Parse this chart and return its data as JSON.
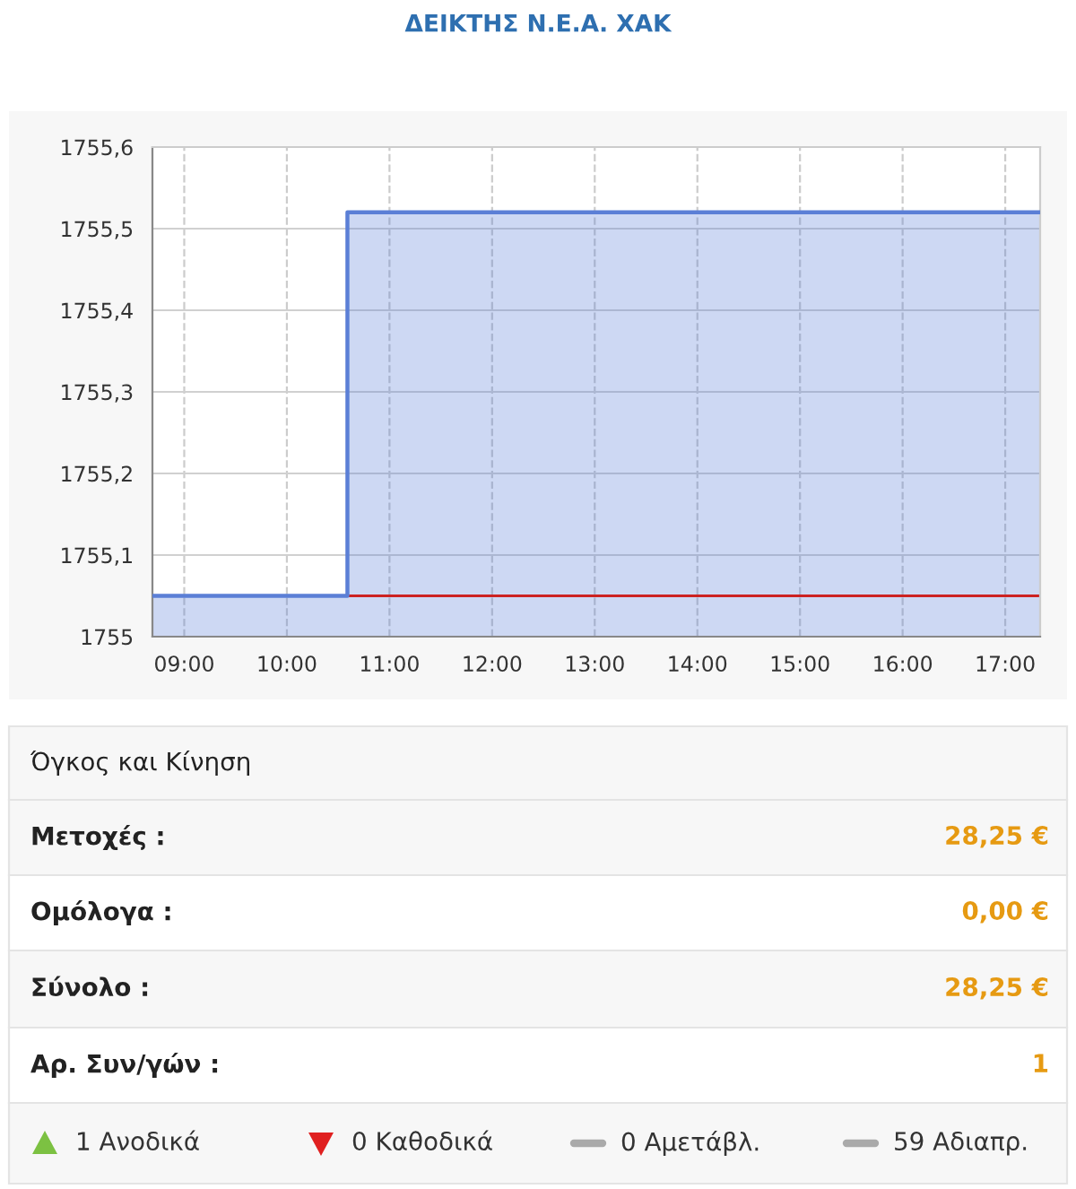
{
  "chart_data": {
    "type": "area",
    "title": "ΔΕΙΚΤΗΣ Ν.Ε.Α. ΧΑΚ",
    "series": [
      {
        "color": "#5b7fd6",
        "x": [
          8.69,
          10.59,
          10.59,
          17.34
        ],
        "values": [
          1755.05,
          1755.05,
          1755.52,
          1755.52
        ]
      }
    ],
    "ref_lines": [
      {
        "axis": "y",
        "value": 1755.05,
        "color": "#cc2222",
        "line_style": "solid"
      }
    ],
    "xlim": [
      8.69,
      17.34
    ],
    "xticks": [
      {
        "value": 9,
        "label": "09:00"
      },
      {
        "value": 10,
        "label": "10:00"
      },
      {
        "value": 11,
        "label": "11:00"
      },
      {
        "value": 12,
        "label": "12:00"
      },
      {
        "value": 13,
        "label": "13:00"
      },
      {
        "value": 14,
        "label": "14:00"
      },
      {
        "value": 15,
        "label": "15:00"
      },
      {
        "value": 16,
        "label": "16:00"
      },
      {
        "value": 17,
        "label": "17:00"
      }
    ],
    "ylim": [
      1755,
      1755.6
    ],
    "yticks": [
      {
        "value": 1755,
        "label": "1755"
      },
      {
        "value": 1755.1,
        "label": "1755,1"
      },
      {
        "value": 1755.2,
        "label": "1755,2"
      },
      {
        "value": 1755.3,
        "label": "1755,3"
      },
      {
        "value": 1755.4,
        "label": "1755,4"
      },
      {
        "value": 1755.5,
        "label": "1755,5"
      },
      {
        "value": 1755.6,
        "label": "1755,6"
      }
    ],
    "grid": true,
    "legend": false,
    "annotations": [
      "Όγκος και Κίνηση",
      "Μετοχές :",
      "28,25 €",
      "Ομόλογα :",
      "0,00 €",
      "Σύνολο :",
      "28,25 €",
      "Αρ. Συν/γών :",
      "1",
      "1 Ανοδικά",
      "0 Καθοδικά",
      "0 Αμετάβλ.",
      "59 Αδιαπρ."
    ]
  }
}
